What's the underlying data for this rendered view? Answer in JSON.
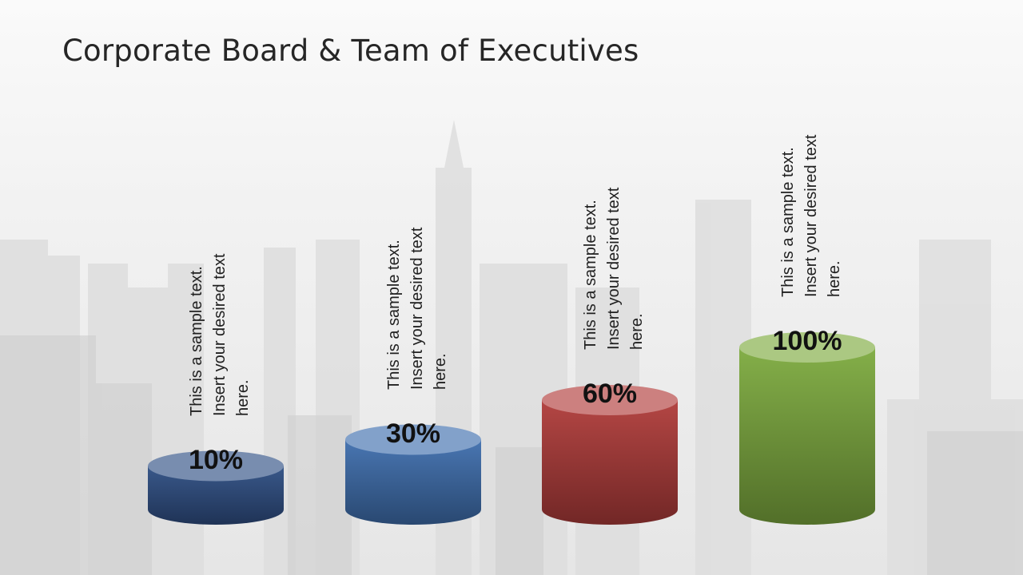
{
  "slide": {
    "title": "Corporate Board & Team of Executives"
  },
  "chart_data": {
    "type": "bar",
    "title": "",
    "categories": [
      "",
      "",
      "",
      ""
    ],
    "values": [
      10,
      30,
      60,
      100
    ],
    "value_labels": [
      "10%",
      "30%",
      "60%",
      "100%"
    ],
    "ylim": [
      0,
      100
    ],
    "colors": [
      "#2f4f84",
      "#3f6fae",
      "#b03c3a",
      "#7eab3f"
    ],
    "descriptions": [
      "This is a sample text.\nInsert your desired text\nhere.",
      "This is a sample text.\nInsert your desired text\nhere.",
      "This is a sample text.\nInsert your desired text\nhere.",
      "This is a sample text.\nInsert your desired text\nhere."
    ]
  }
}
